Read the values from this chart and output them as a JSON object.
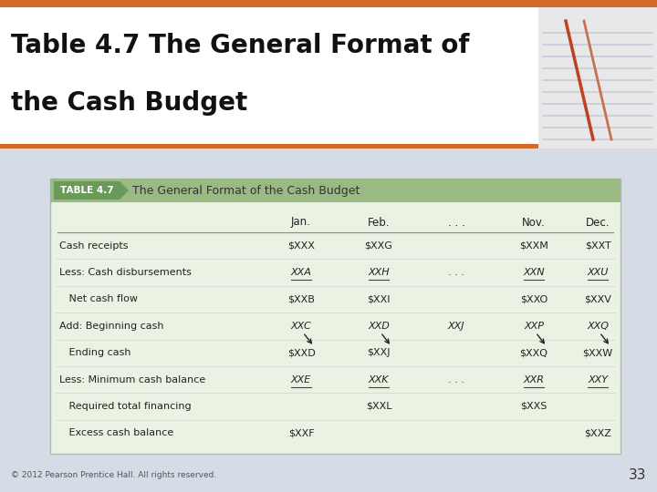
{
  "title_line1": "Table 4.7 The General Format of",
  "title_line2": "the Cash Budget",
  "table_label": "TABLE 4.7",
  "table_subtitle": "The General Format of the Cash Budget",
  "header_bg": "#9aba84",
  "table_bg": "#eaf2e3",
  "slide_bg": "#d5dce6",
  "title_bg": "#ffffff",
  "orange_bar": "#d4692a",
  "columns": [
    "Jan.",
    "Feb.",
    ". . .",
    "Nov.",
    "Dec."
  ],
  "rows": [
    {
      "label": "Cash receipts",
      "indent": 0,
      "underline": false,
      "bold": false,
      "values": [
        "$XXX",
        "$XXG",
        "",
        "$XXM",
        "$XXT"
      ]
    },
    {
      "label": "Less: Cash disbursements",
      "indent": 0,
      "underline": true,
      "bold": false,
      "values": [
        "XXA",
        "XXH",
        ". . .",
        "XXN",
        "XXU"
      ]
    },
    {
      "label": "   Net cash flow",
      "indent": 0,
      "underline": false,
      "bold": false,
      "values": [
        "$XXB",
        "$XXI",
        "",
        "$XXO",
        "$XXV"
      ]
    },
    {
      "label": "Add: Beginning cash",
      "indent": 0,
      "underline": false,
      "bold": false,
      "values": [
        "XXC",
        "XXD",
        "XXJ",
        "XXP",
        "XXQ"
      ]
    },
    {
      "label": "   Ending cash",
      "indent": 0,
      "underline": false,
      "bold": false,
      "values": [
        "$XXD",
        "$XXJ",
        "",
        "$XXQ",
        "$XXW"
      ]
    },
    {
      "label": "Less: Minimum cash balance",
      "indent": 0,
      "underline": true,
      "bold": false,
      "values": [
        "XXE",
        "XXK",
        ". . .",
        "XXR",
        "XXY"
      ]
    },
    {
      "label": "   Required total financing",
      "indent": 0,
      "underline": false,
      "bold": false,
      "values": [
        "",
        "$XXL",
        "",
        "$XXS",
        ""
      ]
    },
    {
      "label": "   Excess cash balance",
      "indent": 0,
      "underline": false,
      "bold": false,
      "values": [
        "$XXF",
        "",
        "",
        "",
        "$XXZ"
      ]
    }
  ],
  "footer_text": "© 2012 Pearson Prentice Hall. All rights reserved.",
  "page_number": "33",
  "title_fontsize": 20,
  "table_label_fontsize": 7.5,
  "table_subtitle_fontsize": 9,
  "col_header_fontsize": 8.5,
  "row_fontsize": 8.0
}
